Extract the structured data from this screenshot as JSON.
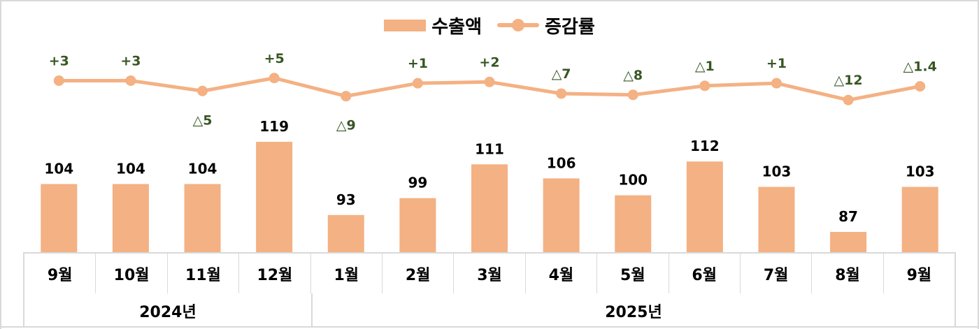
{
  "legend": {
    "bar_label": "수출액",
    "line_label": "증감률"
  },
  "colors": {
    "bar": "#F4B183",
    "line": "#F4B183",
    "rate_label": "#375623",
    "value_label": "#000000",
    "grid": "#d9d9d9"
  },
  "axis": {
    "months": [
      "9월",
      "10월",
      "11월",
      "12월",
      "1월",
      "2월",
      "3월",
      "4월",
      "5월",
      "6월",
      "7월",
      "8월",
      "9월"
    ],
    "years": [
      "2024년",
      "2025년"
    ]
  },
  "chart_data": {
    "type": "bar",
    "title": "",
    "xlabel": "",
    "ylabel": "",
    "categories": [
      "2024년 9월",
      "2024년 10월",
      "2024년 11월",
      "2024년 12월",
      "2025년 1월",
      "2025년 2월",
      "2025년 3월",
      "2025년 4월",
      "2025년 5월",
      "2025년 6월",
      "2025년 7월",
      "2025년 8월",
      "2025년 9월"
    ],
    "series": [
      {
        "name": "수출액",
        "type": "bar",
        "values": [
          104,
          104,
          104,
          119,
          93,
          99,
          111,
          106,
          100,
          112,
          103,
          87,
          103
        ],
        "labels": [
          "104",
          "104",
          "104",
          "119",
          "93",
          "99",
          "111",
          "106",
          "100",
          "112",
          "103",
          "87",
          "103"
        ]
      },
      {
        "name": "증감률",
        "type": "line",
        "values": [
          3,
          3,
          -5,
          5,
          -9,
          1,
          2,
          -7,
          -8,
          -1,
          1,
          -12,
          -1.4
        ],
        "labels": [
          "+3",
          "+3",
          "△5",
          "+5",
          "△9",
          "+1",
          "+2",
          "△7",
          "△8",
          "△1",
          "+1",
          "△12",
          "△1.4"
        ]
      }
    ],
    "legend_position": "top",
    "grid": false,
    "y_axis_visible": false,
    "x_axis_groups": [
      {
        "label": "2024년",
        "months": [
          "9월",
          "10월",
          "11월",
          "12월"
        ]
      },
      {
        "label": "2025년",
        "months": [
          "1월",
          "2월",
          "3월",
          "4월",
          "5월",
          "6월",
          "7월",
          "8월",
          "9월"
        ]
      }
    ]
  }
}
